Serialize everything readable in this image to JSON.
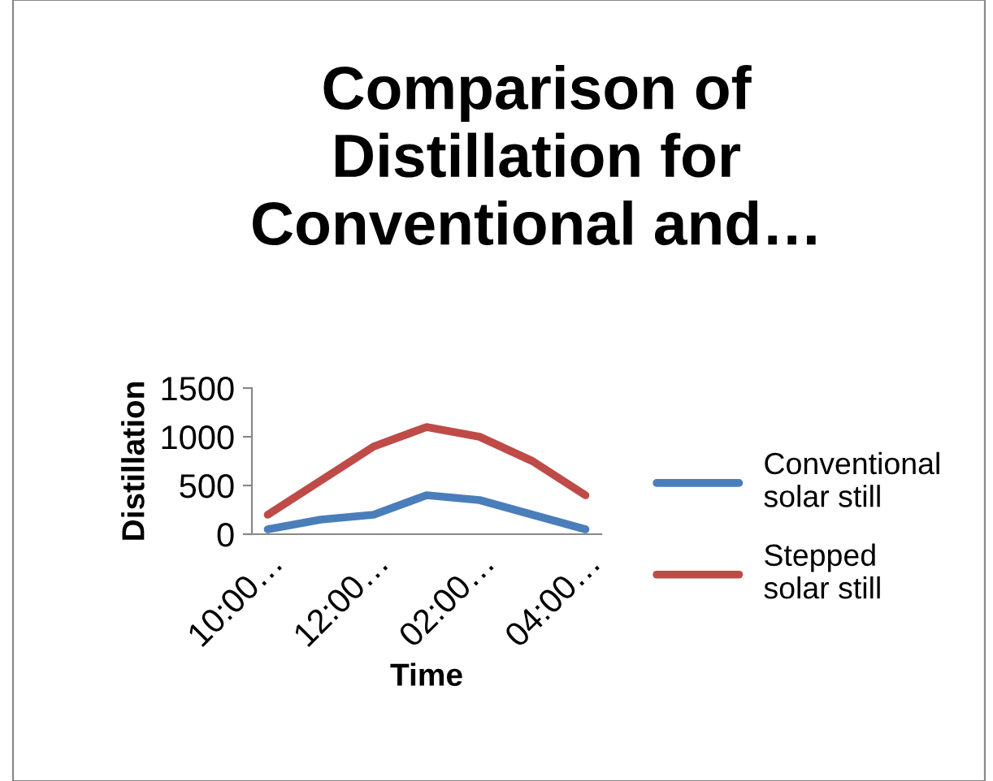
{
  "chart_data": {
    "type": "line",
    "title": "Comparison of Distillation for Conventional and…",
    "xlabel": "Time",
    "ylabel": "Distillation",
    "categories": [
      "10:00…",
      null,
      "12:00…",
      null,
      "02:00…",
      null,
      "04:00…"
    ],
    "series": [
      {
        "name": "Conventional solar still",
        "color": "#4a7ebb",
        "values": [
          50,
          150,
          200,
          400,
          350,
          200,
          50
        ]
      },
      {
        "name": "Stepped solar still",
        "color": "#be4b48",
        "values": [
          200,
          550,
          900,
          1100,
          1000,
          750,
          400
        ]
      }
    ],
    "ylim": [
      0,
      1500
    ],
    "yticks": [
      0,
      500,
      1000,
      1500
    ],
    "grid": false,
    "legend": "right",
    "marker": "none",
    "line_style": "solid"
  }
}
